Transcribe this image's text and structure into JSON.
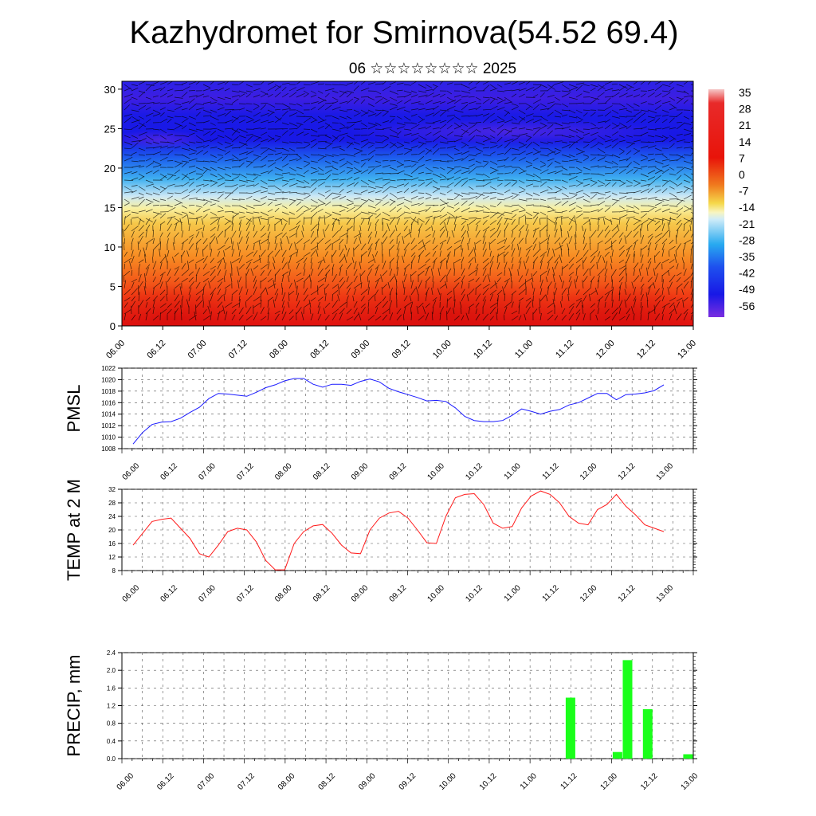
{
  "title": "Kazhydromet for Smirnova(54.52 69.4)",
  "subtitle": "06 ☆☆☆☆☆☆☆☆ 2025",
  "chart_data": [
    {
      "type": "heatmap",
      "name": "upper-air temperature and wind cross-section",
      "x_ticks": [
        "06.00",
        "06.12",
        "07.00",
        "07.12",
        "08.00",
        "08.12",
        "09.00",
        "09.12",
        "10.00",
        "10.12",
        "11.00",
        "11.12",
        "12.00",
        "12.12",
        "13.00"
      ],
      "y_ticks": [
        "0",
        "5",
        "10",
        "15",
        "20",
        "25",
        "30"
      ],
      "ylim": [
        0,
        31
      ],
      "colorbar_labels": [
        "35",
        "28",
        "21",
        "14",
        "7",
        "0",
        "-7",
        "-14",
        "-21",
        "-28",
        "-35",
        "-42",
        "-49",
        "-56"
      ],
      "colors": {
        "warm": "#e8140a",
        "mid": "#f5d84a",
        "cold": "#1e1ee6",
        "top": "#7a2ee0"
      },
      "wind_barbs": true
    },
    {
      "type": "line",
      "ylabel": "PMSL",
      "y_ticks": [
        "1008",
        "1010",
        "1012",
        "1014",
        "1016",
        "1018",
        "1020",
        "1022"
      ],
      "ylim": [
        1008,
        1022
      ],
      "x_ticks": [
        "06.00",
        "06.12",
        "07.00",
        "07.12",
        "08.00",
        "08.12",
        "09.00",
        "09.12",
        "10.00",
        "10.12",
        "11.00",
        "11.12",
        "12.00",
        "12.12",
        "13.00"
      ],
      "color": "#1a1aff",
      "values": [
        1008.8,
        1010.8,
        1012.2,
        1012.6,
        1012.7,
        1013.3,
        1014.3,
        1015.2,
        1016.7,
        1017.6,
        1017.5,
        1017.3,
        1017.1,
        1017.8,
        1018.6,
        1019.1,
        1019.8,
        1020.2,
        1020.2,
        1019.2,
        1018.7,
        1019.2,
        1019.2,
        1019.0,
        1019.7,
        1020.1,
        1019.6,
        1018.5,
        1017.9,
        1017.4,
        1016.9,
        1016.3,
        1016.4,
        1016.2,
        1015.1,
        1013.6,
        1012.9,
        1012.7,
        1012.7,
        1012.9,
        1013.8,
        1014.9,
        1014.5,
        1014.0,
        1014.5,
        1014.8,
        1015.6,
        1016.0,
        1016.8,
        1017.6,
        1017.6,
        1016.5,
        1017.4,
        1017.5,
        1017.7,
        1018.1,
        1019.1
      ]
    },
    {
      "type": "line",
      "ylabel": "TEMP at 2 M",
      "y_ticks": [
        "8",
        "12",
        "16",
        "20",
        "24",
        "28",
        "32"
      ],
      "ylim": [
        8,
        32
      ],
      "x_ticks": [
        "06.00",
        "06.12",
        "07.00",
        "07.12",
        "08.00",
        "08.12",
        "09.00",
        "09.12",
        "10.00",
        "10.12",
        "11.00",
        "11.12",
        "12.00",
        "12.12",
        "13.00"
      ],
      "color": "#ff1a1a",
      "values": [
        15.5,
        19.0,
        22.5,
        23.1,
        23.5,
        20.5,
        17.5,
        13.0,
        12.0,
        15.5,
        19.5,
        20.5,
        20.0,
        16.5,
        11.0,
        8.2,
        8.2,
        16.0,
        19.5,
        21.2,
        21.6,
        19.0,
        15.5,
        13.2,
        13.0,
        20.0,
        23.5,
        25.0,
        25.5,
        23.5,
        20.0,
        16.2,
        16.0,
        24.0,
        29.5,
        30.5,
        30.7,
        27.5,
        22.0,
        20.5,
        21.0,
        26.5,
        30.0,
        31.5,
        30.5,
        28.0,
        24.0,
        22.0,
        21.5,
        26.0,
        27.5,
        30.5,
        27.0,
        24.5,
        21.5,
        20.5,
        19.5
      ]
    },
    {
      "type": "bar",
      "ylabel": "PRECIP, mm",
      "y_ticks": [
        "0.0",
        "0.4",
        "0.8",
        "1.2",
        "1.6",
        "2.0",
        "2.4"
      ],
      "ylim": [
        0,
        2.4
      ],
      "x_ticks": [
        "06.00",
        "06.12",
        "07.00",
        "07.12",
        "08.00",
        "08.12",
        "09.00",
        "09.12",
        "10.00",
        "10.12",
        "11.00",
        "11.12",
        "12.00",
        "12.12",
        "13.00"
      ],
      "color": "#1aff1a",
      "bars": [
        {
          "x": 5.4167,
          "value": 1.38
        },
        {
          "x": 6.0,
          "value": 0.15
        },
        {
          "x": 6.125,
          "value": 2.23
        },
        {
          "x": 6.375,
          "value": 1.12
        },
        {
          "x": 6.875,
          "value": 0.1
        }
      ]
    }
  ]
}
